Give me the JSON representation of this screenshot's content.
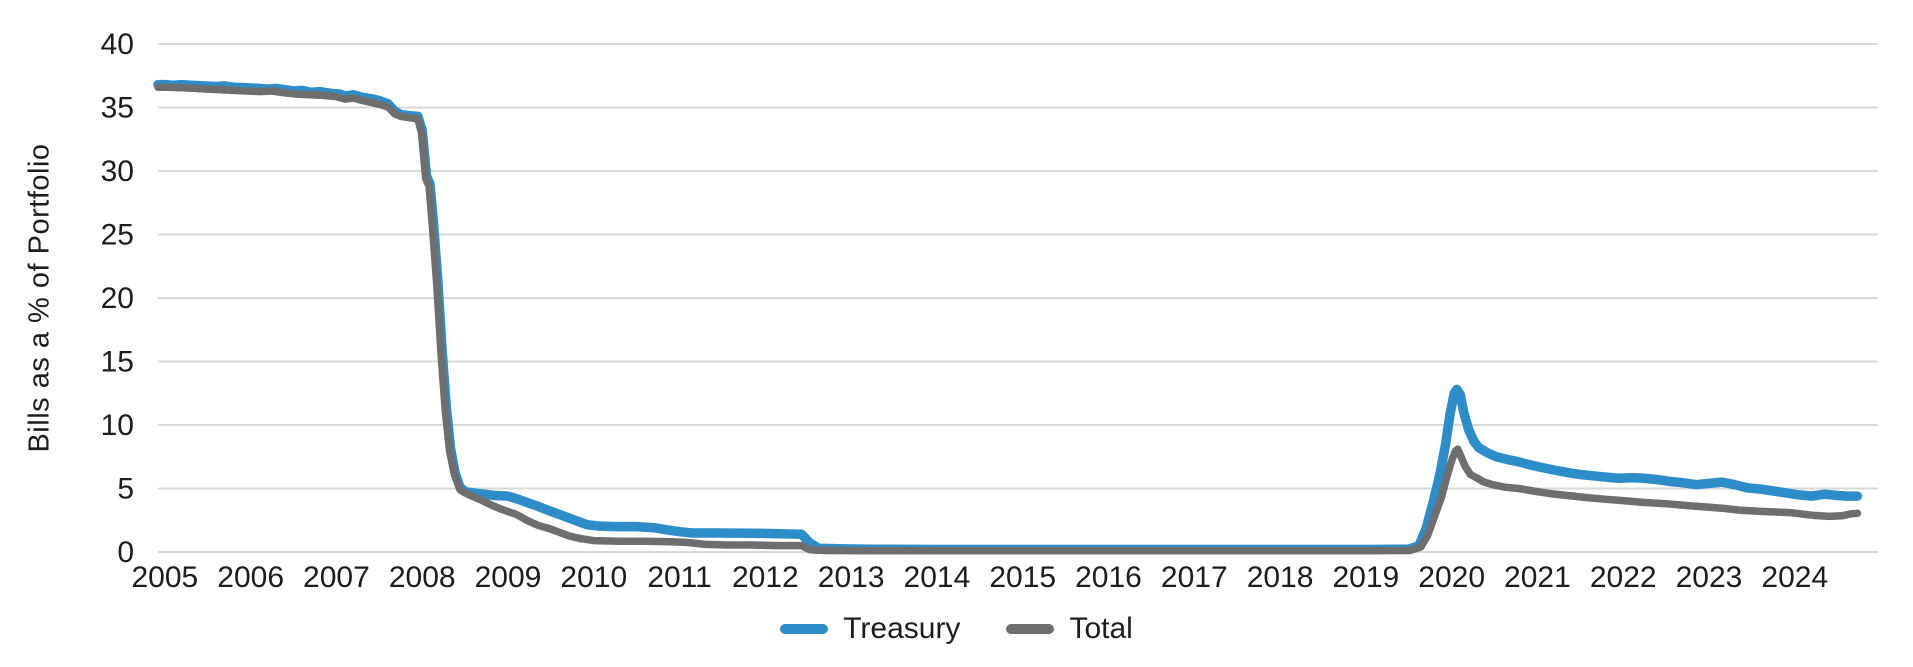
{
  "chart_data": {
    "type": "line",
    "title": "",
    "xlabel": "",
    "ylabel": "Bills as a % of Portfolio",
    "x_ticks": [
      2005,
      2006,
      2007,
      2008,
      2009,
      2010,
      2011,
      2012,
      2013,
      2014,
      2015,
      2016,
      2017,
      2018,
      2019,
      2020,
      2021,
      2022,
      2023,
      2024
    ],
    "y_ticks": [
      0,
      5,
      10,
      15,
      20,
      25,
      30,
      35,
      40
    ],
    "xlim": [
      2004.92,
      2024.97
    ],
    "ylim": [
      0,
      40
    ],
    "grid": true,
    "gridline_color": "#d9d9d9",
    "tick_label_color": "#1c1c1c",
    "legend_position": "bottom-center",
    "series": [
      {
        "name": "Treasury",
        "color": "#2d8dc8",
        "stroke_width": 9.5,
        "points": [
          [
            2004.92,
            36.8
          ],
          [
            2005.0,
            36.8
          ],
          [
            2005.1,
            36.75
          ],
          [
            2005.2,
            36.8
          ],
          [
            2005.3,
            36.75
          ],
          [
            2005.45,
            36.7
          ],
          [
            2005.6,
            36.65
          ],
          [
            2005.7,
            36.7
          ],
          [
            2005.8,
            36.6
          ],
          [
            2005.95,
            36.55
          ],
          [
            2006.1,
            36.5
          ],
          [
            2006.2,
            36.45
          ],
          [
            2006.3,
            36.5
          ],
          [
            2006.4,
            36.4
          ],
          [
            2006.5,
            36.3
          ],
          [
            2006.6,
            36.35
          ],
          [
            2006.7,
            36.2
          ],
          [
            2006.8,
            36.25
          ],
          [
            2006.95,
            36.1
          ],
          [
            2007.05,
            36.05
          ],
          [
            2007.1,
            35.9
          ],
          [
            2007.2,
            36.0
          ],
          [
            2007.3,
            35.8
          ],
          [
            2007.4,
            35.7
          ],
          [
            2007.5,
            35.55
          ],
          [
            2007.6,
            35.3
          ],
          [
            2007.68,
            34.7
          ],
          [
            2007.75,
            34.45
          ],
          [
            2007.85,
            34.35
          ],
          [
            2007.95,
            34.3
          ],
          [
            2008.0,
            33.2
          ],
          [
            2008.05,
            29.6
          ],
          [
            2008.09,
            29.0
          ],
          [
            2008.13,
            26.0
          ],
          [
            2008.18,
            21.5
          ],
          [
            2008.23,
            16.0
          ],
          [
            2008.28,
            11.5
          ],
          [
            2008.33,
            8.2
          ],
          [
            2008.38,
            6.3
          ],
          [
            2008.44,
            5.1
          ],
          [
            2008.5,
            4.75
          ],
          [
            2008.6,
            4.65
          ],
          [
            2008.72,
            4.55
          ],
          [
            2008.85,
            4.45
          ],
          [
            2009.0,
            4.4
          ],
          [
            2009.12,
            4.15
          ],
          [
            2009.22,
            3.9
          ],
          [
            2009.35,
            3.6
          ],
          [
            2009.5,
            3.2
          ],
          [
            2009.6,
            2.95
          ],
          [
            2009.7,
            2.7
          ],
          [
            2009.82,
            2.4
          ],
          [
            2009.92,
            2.15
          ],
          [
            2010.05,
            2.05
          ],
          [
            2010.25,
            2.0
          ],
          [
            2010.5,
            2.0
          ],
          [
            2010.72,
            1.9
          ],
          [
            2010.85,
            1.75
          ],
          [
            2011.0,
            1.6
          ],
          [
            2011.15,
            1.5
          ],
          [
            2011.45,
            1.5
          ],
          [
            2011.8,
            1.48
          ],
          [
            2012.1,
            1.45
          ],
          [
            2012.42,
            1.4
          ],
          [
            2012.52,
            0.7
          ],
          [
            2012.62,
            0.3
          ],
          [
            2012.85,
            0.25
          ],
          [
            2013.2,
            0.22
          ],
          [
            2014.0,
            0.2
          ],
          [
            2015.0,
            0.2
          ],
          [
            2016.0,
            0.2
          ],
          [
            2017.0,
            0.2
          ],
          [
            2018.0,
            0.2
          ],
          [
            2019.0,
            0.2
          ],
          [
            2019.5,
            0.22
          ],
          [
            2019.62,
            0.5
          ],
          [
            2019.7,
            1.8
          ],
          [
            2019.78,
            3.8
          ],
          [
            2019.86,
            6.0
          ],
          [
            2019.93,
            8.5
          ],
          [
            2019.98,
            10.8
          ],
          [
            2020.03,
            12.5
          ],
          [
            2020.06,
            12.8
          ],
          [
            2020.1,
            12.4
          ],
          [
            2020.14,
            11.0
          ],
          [
            2020.2,
            9.6
          ],
          [
            2020.26,
            8.7
          ],
          [
            2020.32,
            8.2
          ],
          [
            2020.42,
            7.8
          ],
          [
            2020.52,
            7.5
          ],
          [
            2020.64,
            7.3
          ],
          [
            2020.78,
            7.1
          ],
          [
            2020.92,
            6.85
          ],
          [
            2021.05,
            6.65
          ],
          [
            2021.2,
            6.45
          ],
          [
            2021.35,
            6.25
          ],
          [
            2021.5,
            6.1
          ],
          [
            2021.65,
            6.0
          ],
          [
            2021.8,
            5.9
          ],
          [
            2021.95,
            5.8
          ],
          [
            2022.1,
            5.85
          ],
          [
            2022.25,
            5.8
          ],
          [
            2022.4,
            5.7
          ],
          [
            2022.55,
            5.55
          ],
          [
            2022.7,
            5.45
          ],
          [
            2022.85,
            5.3
          ],
          [
            2023.0,
            5.4
          ],
          [
            2023.15,
            5.5
          ],
          [
            2023.3,
            5.3
          ],
          [
            2023.45,
            5.05
          ],
          [
            2023.6,
            4.95
          ],
          [
            2023.75,
            4.8
          ],
          [
            2023.9,
            4.65
          ],
          [
            2024.05,
            4.5
          ],
          [
            2024.2,
            4.4
          ],
          [
            2024.35,
            4.55
          ],
          [
            2024.5,
            4.45
          ],
          [
            2024.6,
            4.4
          ],
          [
            2024.73,
            4.4
          ]
        ]
      },
      {
        "name": "Total",
        "color": "#6e6e6e",
        "stroke_width": 7.5,
        "points": [
          [
            2004.92,
            36.6
          ],
          [
            2005.05,
            36.6
          ],
          [
            2005.2,
            36.55
          ],
          [
            2005.35,
            36.5
          ],
          [
            2005.5,
            36.45
          ],
          [
            2005.65,
            36.4
          ],
          [
            2005.8,
            36.35
          ],
          [
            2005.95,
            36.3
          ],
          [
            2006.1,
            36.25
          ],
          [
            2006.25,
            36.3
          ],
          [
            2006.4,
            36.15
          ],
          [
            2006.55,
            36.05
          ],
          [
            2006.7,
            36.0
          ],
          [
            2006.85,
            35.95
          ],
          [
            2007.0,
            35.85
          ],
          [
            2007.1,
            35.65
          ],
          [
            2007.2,
            35.75
          ],
          [
            2007.3,
            35.55
          ],
          [
            2007.4,
            35.4
          ],
          [
            2007.5,
            35.25
          ],
          [
            2007.6,
            35.05
          ],
          [
            2007.68,
            34.5
          ],
          [
            2007.75,
            34.3
          ],
          [
            2007.85,
            34.2
          ],
          [
            2007.95,
            34.1
          ],
          [
            2008.0,
            32.8
          ],
          [
            2008.04,
            29.4
          ],
          [
            2008.08,
            28.8
          ],
          [
            2008.12,
            25.5
          ],
          [
            2008.17,
            21.0
          ],
          [
            2008.22,
            15.5
          ],
          [
            2008.27,
            11.0
          ],
          [
            2008.32,
            7.9
          ],
          [
            2008.38,
            6.0
          ],
          [
            2008.44,
            4.9
          ],
          [
            2008.5,
            4.65
          ],
          [
            2008.6,
            4.35
          ],
          [
            2008.7,
            4.05
          ],
          [
            2008.82,
            3.65
          ],
          [
            2008.95,
            3.3
          ],
          [
            2009.1,
            2.95
          ],
          [
            2009.22,
            2.5
          ],
          [
            2009.35,
            2.1
          ],
          [
            2009.5,
            1.8
          ],
          [
            2009.62,
            1.5
          ],
          [
            2009.72,
            1.25
          ],
          [
            2009.85,
            1.05
          ],
          [
            2010.0,
            0.9
          ],
          [
            2010.3,
            0.85
          ],
          [
            2010.6,
            0.85
          ],
          [
            2010.9,
            0.8
          ],
          [
            2011.1,
            0.75
          ],
          [
            2011.3,
            0.6
          ],
          [
            2011.55,
            0.55
          ],
          [
            2011.85,
            0.55
          ],
          [
            2012.15,
            0.5
          ],
          [
            2012.42,
            0.5
          ],
          [
            2012.52,
            0.18
          ],
          [
            2012.7,
            0.12
          ],
          [
            2013.2,
            0.1
          ],
          [
            2014.0,
            0.1
          ],
          [
            2015.0,
            0.1
          ],
          [
            2016.0,
            0.1
          ],
          [
            2017.0,
            0.1
          ],
          [
            2018.0,
            0.1
          ],
          [
            2019.0,
            0.1
          ],
          [
            2019.52,
            0.12
          ],
          [
            2019.64,
            0.4
          ],
          [
            2019.72,
            1.3
          ],
          [
            2019.8,
            2.8
          ],
          [
            2019.88,
            4.3
          ],
          [
            2019.94,
            5.8
          ],
          [
            2019.99,
            7.0
          ],
          [
            2020.04,
            7.9
          ],
          [
            2020.07,
            8.1
          ],
          [
            2020.11,
            7.5
          ],
          [
            2020.16,
            6.7
          ],
          [
            2020.22,
            6.1
          ],
          [
            2020.3,
            5.8
          ],
          [
            2020.38,
            5.5
          ],
          [
            2020.48,
            5.3
          ],
          [
            2020.62,
            5.1
          ],
          [
            2020.78,
            5.0
          ],
          [
            2020.95,
            4.8
          ],
          [
            2021.15,
            4.6
          ],
          [
            2021.35,
            4.45
          ],
          [
            2021.55,
            4.3
          ],
          [
            2021.8,
            4.15
          ],
          [
            2022.0,
            4.05
          ],
          [
            2022.25,
            3.9
          ],
          [
            2022.5,
            3.8
          ],
          [
            2022.75,
            3.65
          ],
          [
            2022.95,
            3.55
          ],
          [
            2023.15,
            3.45
          ],
          [
            2023.35,
            3.3
          ],
          [
            2023.6,
            3.2
          ],
          [
            2023.95,
            3.1
          ],
          [
            2024.2,
            2.9
          ],
          [
            2024.4,
            2.8
          ],
          [
            2024.55,
            2.85
          ],
          [
            2024.65,
            3.0
          ],
          [
            2024.73,
            3.05
          ]
        ]
      }
    ]
  }
}
